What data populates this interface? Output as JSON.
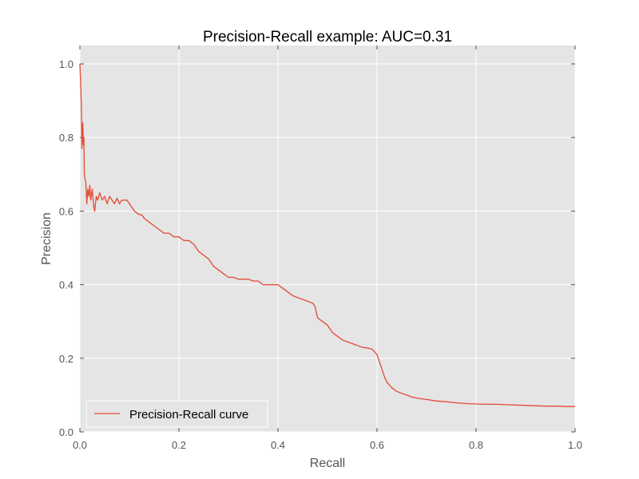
{
  "colors": {
    "background": "#ffffff",
    "plot_background": "#e5e5e5",
    "grid": "#ffffff",
    "series": "#e24a33",
    "legend_background": "#e5e5e5",
    "legend_border": "#ffffff"
  },
  "chart_data": {
    "type": "line",
    "title": "Precision-Recall example: AUC=0.31",
    "xlabel": "Recall",
    "ylabel": "Precision",
    "xlim": [
      0.0,
      1.0
    ],
    "ylim": [
      0.0,
      1.05
    ],
    "xticks": [
      0.0,
      0.2,
      0.4,
      0.6,
      0.8,
      1.0
    ],
    "xtick_labels": [
      "0.0",
      "0.2",
      "0.4",
      "0.6",
      "0.8",
      "1.0"
    ],
    "yticks": [
      0.0,
      0.2,
      0.4,
      0.6,
      0.8,
      1.0
    ],
    "ytick_labels": [
      "0.0",
      "0.2",
      "0.4",
      "0.6",
      "0.8",
      "1.0"
    ],
    "grid": true,
    "legend": {
      "position": "lower-left",
      "entries": [
        "Precision-Recall curve"
      ]
    },
    "series": [
      {
        "name": "Precision-Recall curve",
        "x": [
          0.0,
          0.002,
          0.003,
          0.004,
          0.005,
          0.006,
          0.007,
          0.008,
          0.009,
          0.01,
          0.012,
          0.014,
          0.016,
          0.018,
          0.02,
          0.022,
          0.025,
          0.028,
          0.03,
          0.033,
          0.036,
          0.04,
          0.045,
          0.05,
          0.055,
          0.06,
          0.065,
          0.07,
          0.075,
          0.08,
          0.085,
          0.09,
          0.095,
          0.1,
          0.105,
          0.11,
          0.115,
          0.12,
          0.125,
          0.13,
          0.14,
          0.15,
          0.16,
          0.17,
          0.18,
          0.19,
          0.2,
          0.21,
          0.22,
          0.23,
          0.24,
          0.25,
          0.26,
          0.27,
          0.28,
          0.29,
          0.3,
          0.31,
          0.32,
          0.33,
          0.34,
          0.35,
          0.36,
          0.37,
          0.38,
          0.39,
          0.4,
          0.41,
          0.42,
          0.43,
          0.44,
          0.45,
          0.46,
          0.47,
          0.475,
          0.48,
          0.49,
          0.5,
          0.51,
          0.52,
          0.53,
          0.54,
          0.55,
          0.56,
          0.57,
          0.58,
          0.59,
          0.6,
          0.61,
          0.615,
          0.62,
          0.63,
          0.64,
          0.65,
          0.66,
          0.67,
          0.68,
          0.7,
          0.72,
          0.74,
          0.76,
          0.78,
          0.8,
          0.82,
          0.84,
          0.86,
          0.88,
          0.9,
          0.92,
          0.94,
          0.96,
          0.98,
          1.0
        ],
        "y": [
          1.0,
          0.93,
          0.88,
          0.77,
          0.82,
          0.84,
          0.78,
          0.8,
          0.7,
          0.69,
          0.68,
          0.62,
          0.66,
          0.64,
          0.67,
          0.63,
          0.66,
          0.61,
          0.6,
          0.64,
          0.63,
          0.65,
          0.63,
          0.64,
          0.62,
          0.64,
          0.63,
          0.62,
          0.635,
          0.62,
          0.63,
          0.63,
          0.63,
          0.62,
          0.61,
          0.6,
          0.595,
          0.59,
          0.59,
          0.58,
          0.57,
          0.56,
          0.55,
          0.54,
          0.54,
          0.53,
          0.53,
          0.52,
          0.52,
          0.51,
          0.49,
          0.48,
          0.47,
          0.45,
          0.44,
          0.43,
          0.42,
          0.42,
          0.415,
          0.415,
          0.415,
          0.41,
          0.41,
          0.4,
          0.4,
          0.4,
          0.4,
          0.39,
          0.38,
          0.37,
          0.365,
          0.36,
          0.355,
          0.35,
          0.34,
          0.31,
          0.3,
          0.29,
          0.27,
          0.26,
          0.25,
          0.245,
          0.24,
          0.235,
          0.23,
          0.228,
          0.225,
          0.21,
          0.17,
          0.15,
          0.135,
          0.12,
          0.11,
          0.105,
          0.1,
          0.095,
          0.092,
          0.088,
          0.084,
          0.082,
          0.079,
          0.077,
          0.076,
          0.075,
          0.075,
          0.074,
          0.073,
          0.072,
          0.071,
          0.07,
          0.07,
          0.069,
          0.069
        ]
      }
    ]
  }
}
